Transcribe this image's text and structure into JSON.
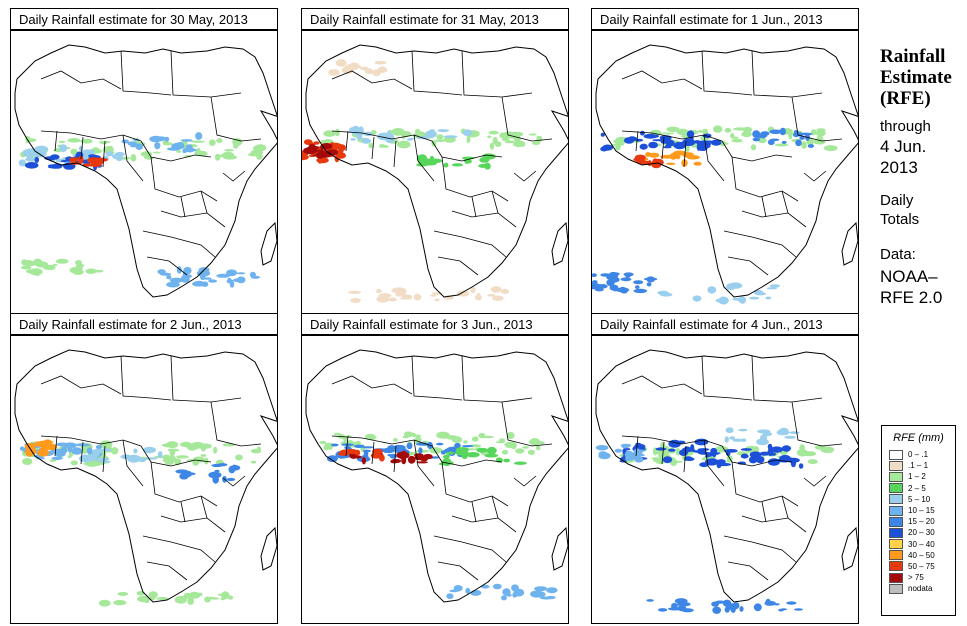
{
  "panels": [
    {
      "title": "Daily Rainfall estimate for  30 May, 2013",
      "variant": 0
    },
    {
      "title": "Daily Rainfall estimate for  31 May, 2013",
      "variant": 1
    },
    {
      "title": "Daily Rainfall estimate for  1 Jun., 2013",
      "variant": 2
    },
    {
      "title": "Daily Rainfall estimate for  2 Jun., 2013",
      "variant": 3
    },
    {
      "title": "Daily Rainfall estimate for  3 Jun., 2013",
      "variant": 4
    },
    {
      "title": "Daily Rainfall estimate for  4 Jun., 2013",
      "variant": 5
    }
  ],
  "side": {
    "title_line1": "Rainfall",
    "title_line2": "Estimate",
    "title_line3": "(RFE)",
    "through_label": "through",
    "through_date_line1": "4 Jun.",
    "through_date_line2": "2013",
    "period_line1": "Daily",
    "period_line2": "Totals",
    "data_label": "Data:",
    "data_source_line1": "NOAA–",
    "data_source_line2": "RFE 2.0"
  },
  "legend": {
    "title": "RFE (mm)",
    "items": [
      {
        "label": "0 – .1",
        "color": "#ffffff"
      },
      {
        "label": ".1 – 1",
        "color": "#f1dcc5"
      },
      {
        "label": "1 – 2",
        "color": "#a6e89a"
      },
      {
        "label": "2 – 5",
        "color": "#56d65a"
      },
      {
        "label": "5 – 10",
        "color": "#9ad0ee"
      },
      {
        "label": "10 – 15",
        "color": "#6fb3ee"
      },
      {
        "label": "15 – 20",
        "color": "#3e86e6"
      },
      {
        "label": "20 – 30",
        "color": "#1c50d8"
      },
      {
        "label": "30 – 40",
        "color": "#ffd24a"
      },
      {
        "label": "40 – 50",
        "color": "#ff9b1c"
      },
      {
        "label": "50 – 75",
        "color": "#e8380e"
      },
      {
        "label": "> 75",
        "color": "#a40a0a"
      },
      {
        "label": "nodata",
        "color": "#bdbdbd"
      }
    ]
  }
}
